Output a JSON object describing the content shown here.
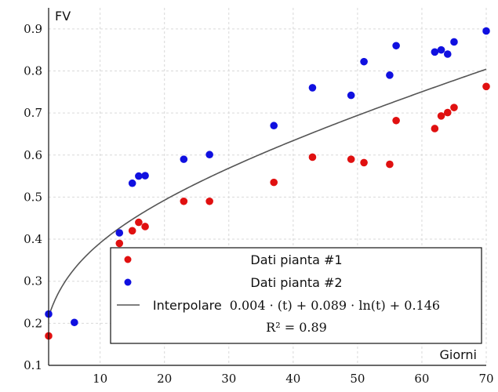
{
  "chart_data": {
    "type": "scatter",
    "title": "",
    "xlabel": "Giorni",
    "ylabel": "FV",
    "xlim": [
      2,
      70
    ],
    "ylim": [
      0.1,
      0.95
    ],
    "xticks": [
      10,
      20,
      30,
      40,
      50,
      60,
      70
    ],
    "yticks": [
      0.1,
      0.2,
      0.3,
      0.4,
      0.5,
      0.6,
      0.7,
      0.8,
      0.9
    ],
    "grid": true,
    "series": [
      {
        "name": "Dati pianta #1",
        "color": "#e01010",
        "points": [
          {
            "x": 2,
            "y": 0.17
          },
          {
            "x": 13,
            "y": 0.39
          },
          {
            "x": 15,
            "y": 0.42
          },
          {
            "x": 16,
            "y": 0.44
          },
          {
            "x": 17,
            "y": 0.43
          },
          {
            "x": 23,
            "y": 0.49
          },
          {
            "x": 27,
            "y": 0.49
          },
          {
            "x": 37,
            "y": 0.535
          },
          {
            "x": 43,
            "y": 0.595
          },
          {
            "x": 49,
            "y": 0.59
          },
          {
            "x": 51,
            "y": 0.582
          },
          {
            "x": 55,
            "y": 0.578
          },
          {
            "x": 56,
            "y": 0.682
          },
          {
            "x": 62,
            "y": 0.663
          },
          {
            "x": 63,
            "y": 0.693
          },
          {
            "x": 64,
            "y": 0.701
          },
          {
            "x": 65,
            "y": 0.713
          },
          {
            "x": 70,
            "y": 0.763
          }
        ]
      },
      {
        "name": "Dati pianta #2",
        "color": "#1010e0",
        "points": [
          {
            "x": 2,
            "y": 0.222
          },
          {
            "x": 6,
            "y": 0.202
          },
          {
            "x": 13,
            "y": 0.415
          },
          {
            "x": 15,
            "y": 0.533
          },
          {
            "x": 16,
            "y": 0.55
          },
          {
            "x": 17,
            "y": 0.551
          },
          {
            "x": 23,
            "y": 0.59
          },
          {
            "x": 27,
            "y": 0.601
          },
          {
            "x": 37,
            "y": 0.67
          },
          {
            "x": 43,
            "y": 0.76
          },
          {
            "x": 49,
            "y": 0.742
          },
          {
            "x": 51,
            "y": 0.822
          },
          {
            "x": 55,
            "y": 0.79
          },
          {
            "x": 56,
            "y": 0.86
          },
          {
            "x": 62,
            "y": 0.845
          },
          {
            "x": 63,
            "y": 0.85
          },
          {
            "x": 64,
            "y": 0.84
          },
          {
            "x": 65,
            "y": 0.869
          },
          {
            "x": 70,
            "y": 0.895
          }
        ]
      }
    ],
    "fit": {
      "name": "Interpolare",
      "formula": "0.004 · (t) + 0.089 · ln(t) + 0.146",
      "coefficients": {
        "a": 0.004,
        "b": 0.089,
        "c": 0.146
      },
      "r2_label": "R² = 0.89",
      "color": "#555555"
    },
    "legend_position": "bottom-right"
  }
}
